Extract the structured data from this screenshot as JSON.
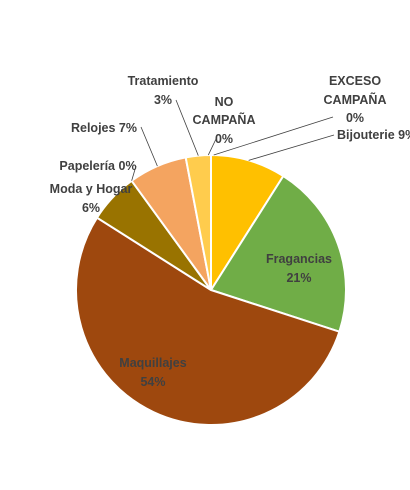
{
  "chart_data": {
    "type": "pie",
    "title": "",
    "colors": {
      "Bijouterie": "#FFC000",
      "Fragancias": "#70AD47",
      "Maquillajes": "#9E480E",
      "Moda y Hogar": "#997300",
      "Papelería": "#ED7D31",
      "Relojes": "#F4A460",
      "Tratamiento": "#FFCC4D",
      "NO CAMPAÑA": "#A5A5A5",
      "EXCESO CAMPAÑA": "#5B9BD5"
    },
    "slices": [
      {
        "name": "Bijouterie",
        "value": 9,
        "label": "Bijouterie 9%"
      },
      {
        "name": "Fragancias",
        "value": 21,
        "label": "Fragancias",
        "pct": "21%"
      },
      {
        "name": "Maquillajes",
        "value": 54,
        "label": "Maquillajes",
        "pct": "54%"
      },
      {
        "name": "Moda y Hogar",
        "value": 6,
        "label": "Moda y Hogar",
        "pct": "6%"
      },
      {
        "name": "Papelería",
        "value": 0,
        "label": "Papelería 0%"
      },
      {
        "name": "Relojes",
        "value": 7,
        "label": "Relojes 7%"
      },
      {
        "name": "Tratamiento",
        "value": 3,
        "label": "Tratamiento",
        "pct": "3%"
      },
      {
        "name": "NO CAMPAÑA",
        "value": 0,
        "label": "NO",
        "label2": "CAMPAÑA",
        "pct": "0%"
      },
      {
        "name": "EXCESO CAMPAÑA",
        "value": 0,
        "label": "EXCESO",
        "label2": "CAMPAÑA",
        "pct": "0%"
      }
    ]
  }
}
